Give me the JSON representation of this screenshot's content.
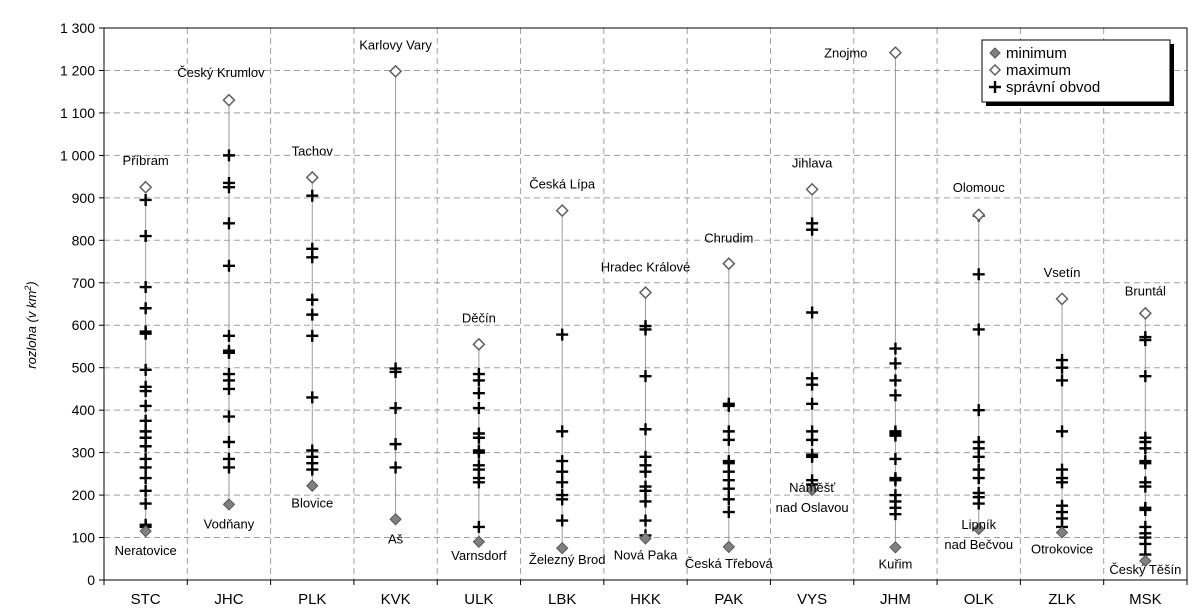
{
  "chart_data": {
    "type": "scatter",
    "ylabel": "rozloha (v km2)",
    "ylabel_main": "rozloha (v km",
    "ylabel_sup": "2",
    "ylabel_tail": ")",
    "ylim": [
      0,
      1300
    ],
    "yticks": [
      0,
      100,
      200,
      300,
      400,
      500,
      600,
      700,
      800,
      900,
      1000,
      1100,
      1200,
      1300
    ],
    "ytick_labels": [
      "0",
      "100",
      "200",
      "300",
      "400",
      "500",
      "600",
      "700",
      "800",
      "900",
      "1 000",
      "1 100",
      "1 200",
      "1 300"
    ],
    "grid": true,
    "legend_position": "top-right",
    "legend": [
      {
        "key": "minimum",
        "label": "minimum",
        "marker": "diamond-filled"
      },
      {
        "key": "maximum",
        "label": "maximum",
        "marker": "diamond-open"
      },
      {
        "key": "obvod",
        "label": "správní obvod",
        "marker": "plus"
      }
    ],
    "colors": {
      "minimum": "#808080",
      "maximum_edge": "#606060",
      "plus": "#000000",
      "range_line": "#9a9a9a",
      "grid": "#a0a0a0"
    },
    "categories": [
      {
        "code": "STC",
        "min": 115,
        "min_label": "Neratovice",
        "max": 925,
        "max_label": "Příbram",
        "points": [
          125,
          130,
          180,
          210,
          240,
          265,
          285,
          315,
          335,
          350,
          375,
          410,
          445,
          455,
          495,
          580,
          585,
          640,
          690,
          810,
          895
        ]
      },
      {
        "code": "JHC",
        "min": 178,
        "min_label": "Vodňany",
        "max": 1130,
        "max_label": "Český Krumlov",
        "points": [
          265,
          285,
          325,
          385,
          450,
          470,
          485,
          535,
          540,
          575,
          740,
          840,
          925,
          935,
          1000
        ]
      },
      {
        "code": "PLK",
        "min": 222,
        "min_label": "Blovice",
        "max": 948,
        "max_label": "Tachov",
        "points": [
          260,
          275,
          290,
          305,
          430,
          575,
          625,
          660,
          760,
          780,
          905
        ]
      },
      {
        "code": "KVK",
        "min": 143,
        "min_label": "Aš",
        "max": 1198,
        "max_label": "Karlovy Vary",
        "points": [
          265,
          320,
          405,
          490,
          498
        ]
      },
      {
        "code": "ULK",
        "min": 90,
        "min_label": "Varnsdorf",
        "max": 555,
        "max_label": "Děčín",
        "points": [
          125,
          230,
          240,
          260,
          270,
          300,
          305,
          335,
          345,
          405,
          440,
          470,
          485
        ]
      },
      {
        "code": "LBK",
        "min": 75,
        "min_label": "Železný Brod",
        "max": 870,
        "max_label": "Česká Lípa",
        "points": [
          140,
          190,
          200,
          230,
          255,
          280,
          350,
          578
        ]
      },
      {
        "code": "HKK",
        "min": 98,
        "min_label": "Nová Paka",
        "max": 677,
        "max_label": "Hradec Králové",
        "points": [
          105,
          140,
          185,
          210,
          220,
          255,
          270,
          290,
          355,
          480,
          590,
          598
        ]
      },
      {
        "code": "PAK",
        "min": 78,
        "min_label": "Česká Třebová",
        "max": 745,
        "max_label": "Chrudim",
        "points": [
          160,
          190,
          215,
          235,
          255,
          275,
          280,
          330,
          350,
          410,
          415
        ]
      },
      {
        "code": "VYS",
        "min": 212,
        "min_label": "Náměšť nad Oslavou",
        "min_label_lines": [
          "Náměšť",
          "nad Oslavou"
        ],
        "max": 920,
        "max_label": "Jihlava",
        "points": [
          225,
          235,
          290,
          295,
          330,
          350,
          415,
          460,
          475,
          630,
          825,
          840
        ]
      },
      {
        "code": "JHM",
        "min": 77,
        "min_label": "Kuřim",
        "max": 1242,
        "max_label": "Znojmo",
        "points": [
          155,
          170,
          185,
          200,
          235,
          240,
          285,
          340,
          345,
          350,
          435,
          470,
          510,
          545
        ]
      },
      {
        "code": "OLK",
        "min": 120,
        "min_label": "Lipník nad Bečvou",
        "min_label_lines": [
          "Lipník",
          "nad Bečvou"
        ],
        "max": 860,
        "max_label": "Olomouc",
        "points": [
          180,
          195,
          205,
          240,
          260,
          290,
          310,
          325,
          400,
          590,
          720,
          858
        ]
      },
      {
        "code": "ZLK",
        "min": 112,
        "min_label": "Otrokovice",
        "max": 662,
        "max_label": "Vsetín",
        "points": [
          125,
          145,
          160,
          175,
          230,
          240,
          260,
          350,
          470,
          500,
          518
        ]
      },
      {
        "code": "MSK",
        "min": 45,
        "min_label": "Český Těšín",
        "max": 628,
        "max_label": "Bruntál",
        "points": [
          60,
          85,
          100,
          110,
          125,
          165,
          170,
          220,
          230,
          275,
          280,
          310,
          325,
          335,
          480,
          565,
          572
        ]
      }
    ]
  }
}
